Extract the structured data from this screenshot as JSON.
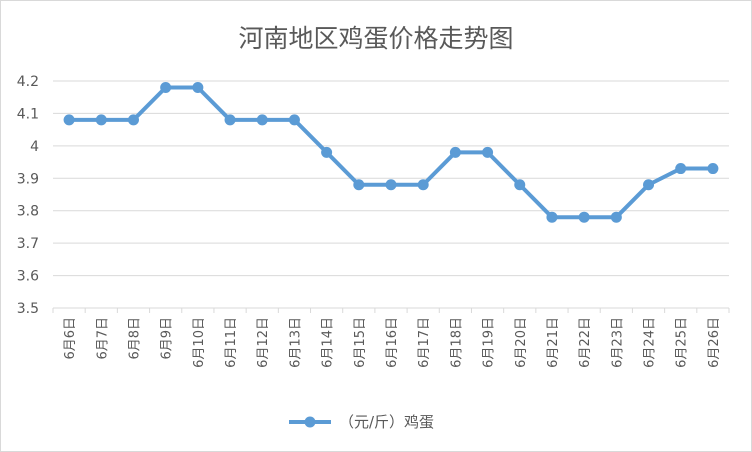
{
  "chart_data": {
    "type": "line",
    "title": "河南地区鸡蛋价格走势图",
    "categories": [
      "6月6日",
      "6月7日",
      "6月8日",
      "6月9日",
      "6月10日",
      "6月11日",
      "6月12日",
      "6月13日",
      "6月14日",
      "6月15日",
      "6月16日",
      "6月17日",
      "6月18日",
      "6月19日",
      "6月20日",
      "6月21日",
      "6月22日",
      "6月23日",
      "6月24日",
      "6月25日",
      "6月26日"
    ],
    "series": [
      {
        "name": "（元/斤）鸡蛋",
        "color": "#5b9bd5",
        "values": [
          4.08,
          4.08,
          4.08,
          4.18,
          4.18,
          4.08,
          4.08,
          4.08,
          3.98,
          3.88,
          3.88,
          3.88,
          3.98,
          3.98,
          3.88,
          3.78,
          3.78,
          3.78,
          3.88,
          3.93,
          3.93
        ]
      }
    ],
    "ylim": [
      3.5,
      4.2
    ],
    "yticks": [
      "3.5",
      "3.6",
      "3.7",
      "3.8",
      "3.9",
      "4",
      "4.1",
      "4.2"
    ],
    "xlabel": "",
    "ylabel": "",
    "grid": true,
    "legend": "bottom"
  }
}
